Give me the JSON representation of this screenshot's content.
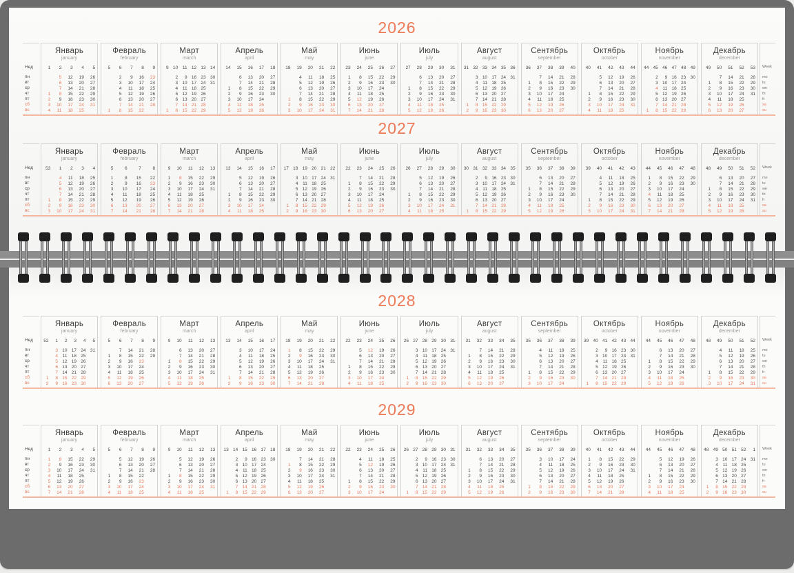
{
  "calendar": {
    "panels": [
      {
        "years": [
          2026,
          2027
        ]
      },
      {
        "years": [
          2028,
          2029
        ]
      }
    ],
    "months": [
      {
        "ru": "Январь",
        "en": "january"
      },
      {
        "ru": "Февраль",
        "en": "february"
      },
      {
        "ru": "Март",
        "en": "march"
      },
      {
        "ru": "Апрель",
        "en": "april"
      },
      {
        "ru": "Май",
        "en": "may"
      },
      {
        "ru": "Июнь",
        "en": "june"
      },
      {
        "ru": "Июль",
        "en": "july"
      },
      {
        "ru": "Август",
        "en": "august"
      },
      {
        "ru": "Сентябрь",
        "en": "september"
      },
      {
        "ru": "Октябрь",
        "en": "october"
      },
      {
        "ru": "Ноябрь",
        "en": "november"
      },
      {
        "ru": "Декабрь",
        "en": "december"
      }
    ],
    "weekdays_ru": [
      "пн",
      "вт",
      "ср",
      "чт",
      "пт",
      "сб",
      "вс"
    ],
    "weekdays_en": [
      "mo",
      "tu",
      "we",
      "th",
      "fr",
      "sa",
      "su"
    ],
    "week_col_label_ru": "Нед",
    "week_col_label_en": "Week",
    "weekend_day_indices": [
      5,
      6
    ],
    "highlighted_dates_month_day": [
      "1-1",
      "1-2",
      "1-3",
      "1-4",
      "1-5",
      "1-6",
      "1-7",
      "1-8",
      "2-23",
      "3-8",
      "5-1",
      "5-9",
      "6-12",
      "11-4"
    ],
    "colors": {
      "accent_dates": "#E8795B",
      "accent_title": "#EC7A57",
      "separator_line": "#F3B6A1",
      "box_border": "#D3D3D1",
      "text": "#4A4A4A",
      "muted_en_name": "#9B9B9B",
      "board_gray": "#6C6C6C",
      "coil_black": "#1F1F1F",
      "page_white": "#FBFBF9"
    }
  }
}
